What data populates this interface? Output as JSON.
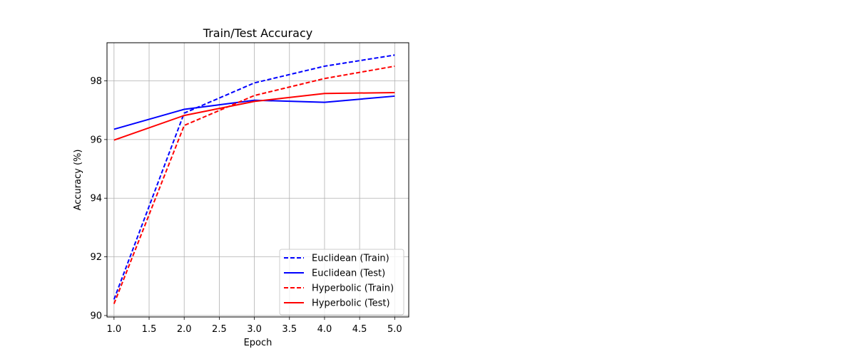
{
  "chart_data": {
    "type": "line",
    "title": "Train/Test Accuracy",
    "xlabel": "Epoch",
    "ylabel": "Accuracy (%)",
    "xlim": [
      0.9,
      5.2
    ],
    "ylim": [
      89.95,
      99.3
    ],
    "xticks": [
      1.0,
      1.5,
      2.0,
      2.5,
      3.0,
      3.5,
      4.0,
      4.5,
      5.0
    ],
    "xtick_labels": [
      "1.0",
      "1.5",
      "2.0",
      "2.5",
      "3.0",
      "3.5",
      "4.0",
      "4.5",
      "5.0"
    ],
    "yticks": [
      90,
      92,
      94,
      96,
      98
    ],
    "ytick_labels": [
      "90",
      "92",
      "94",
      "96",
      "98"
    ],
    "grid": true,
    "legend_position": "lower-right",
    "x": [
      1,
      2,
      3,
      4,
      5
    ],
    "series": [
      {
        "name": "Euclidean (Train)",
        "values": [
          90.55,
          96.9,
          97.93,
          98.5,
          98.88
        ],
        "color": "#0000ff",
        "style": "dashed"
      },
      {
        "name": "Euclidean (Test)",
        "values": [
          96.35,
          97.03,
          97.34,
          97.27,
          97.48
        ],
        "color": "#0000ff",
        "style": "solid"
      },
      {
        "name": "Hyperbolic (Train)",
        "values": [
          90.4,
          96.48,
          97.5,
          98.08,
          98.5
        ],
        "color": "#ff0000",
        "style": "dashed"
      },
      {
        "name": "Hyperbolic (Test)",
        "values": [
          95.98,
          96.82,
          97.3,
          97.57,
          97.6
        ],
        "color": "#ff0000",
        "style": "solid"
      }
    ]
  }
}
